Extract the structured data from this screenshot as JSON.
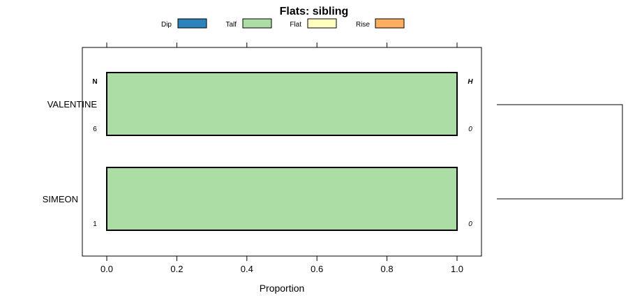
{
  "chart_data": {
    "type": "bar",
    "orientation": "horizontal",
    "stacked": true,
    "title": "Flats: sibling",
    "xlabel": "Proportion",
    "ylabel": "",
    "xlim": [
      -0.07,
      1.07
    ],
    "xticks": [
      0.0,
      0.2,
      0.4,
      0.6,
      0.8,
      1.0
    ],
    "xtick_labels": [
      "0.0",
      "0.2",
      "0.4",
      "0.6",
      "0.8",
      "1.0"
    ],
    "legend_position": "top",
    "categories": [
      "VALENTINE",
      "SIMEON"
    ],
    "series": [
      {
        "name": "Dip",
        "color": "#2b83ba",
        "values": [
          0,
          0
        ]
      },
      {
        "name": "Talf",
        "color": "#abdda4",
        "values": [
          1.0,
          1.0
        ]
      },
      {
        "name": "Flat",
        "color": "#ffffbf",
        "values": [
          0,
          0
        ]
      },
      {
        "name": "Rise",
        "color": "#fdae61",
        "values": [
          0,
          0
        ]
      }
    ],
    "left_column_header": "N",
    "right_column_header": "H",
    "n_values": [
      "6",
      "1"
    ],
    "h_values": [
      "0",
      "0"
    ],
    "dendrogram": true
  }
}
